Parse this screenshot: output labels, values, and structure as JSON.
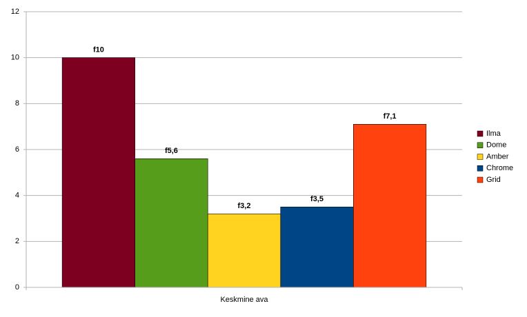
{
  "chart_data": {
    "type": "bar",
    "categories": [
      "Keskmine ava"
    ],
    "series": [
      {
        "name": "Ilma",
        "color": "#7e0021",
        "values": [
          10
        ],
        "value_labels": [
          "f10"
        ]
      },
      {
        "name": "Dome",
        "color": "#579d1c",
        "values": [
          5.6
        ],
        "value_labels": [
          "f5,6"
        ]
      },
      {
        "name": "Amber",
        "color": "#ffd320",
        "values": [
          3.2
        ],
        "value_labels": [
          "f3,2"
        ]
      },
      {
        "name": "Chrome",
        "color": "#004586",
        "values": [
          3.5
        ],
        "value_labels": [
          "f3,5"
        ]
      },
      {
        "name": "Grid",
        "color": "#ff420e",
        "values": [
          7.1
        ],
        "value_labels": [
          "f7,1"
        ]
      }
    ],
    "ylim": [
      0,
      12
    ],
    "yticks": [
      0,
      2,
      4,
      6,
      8,
      10,
      12
    ],
    "grid": true,
    "legend": "right"
  }
}
